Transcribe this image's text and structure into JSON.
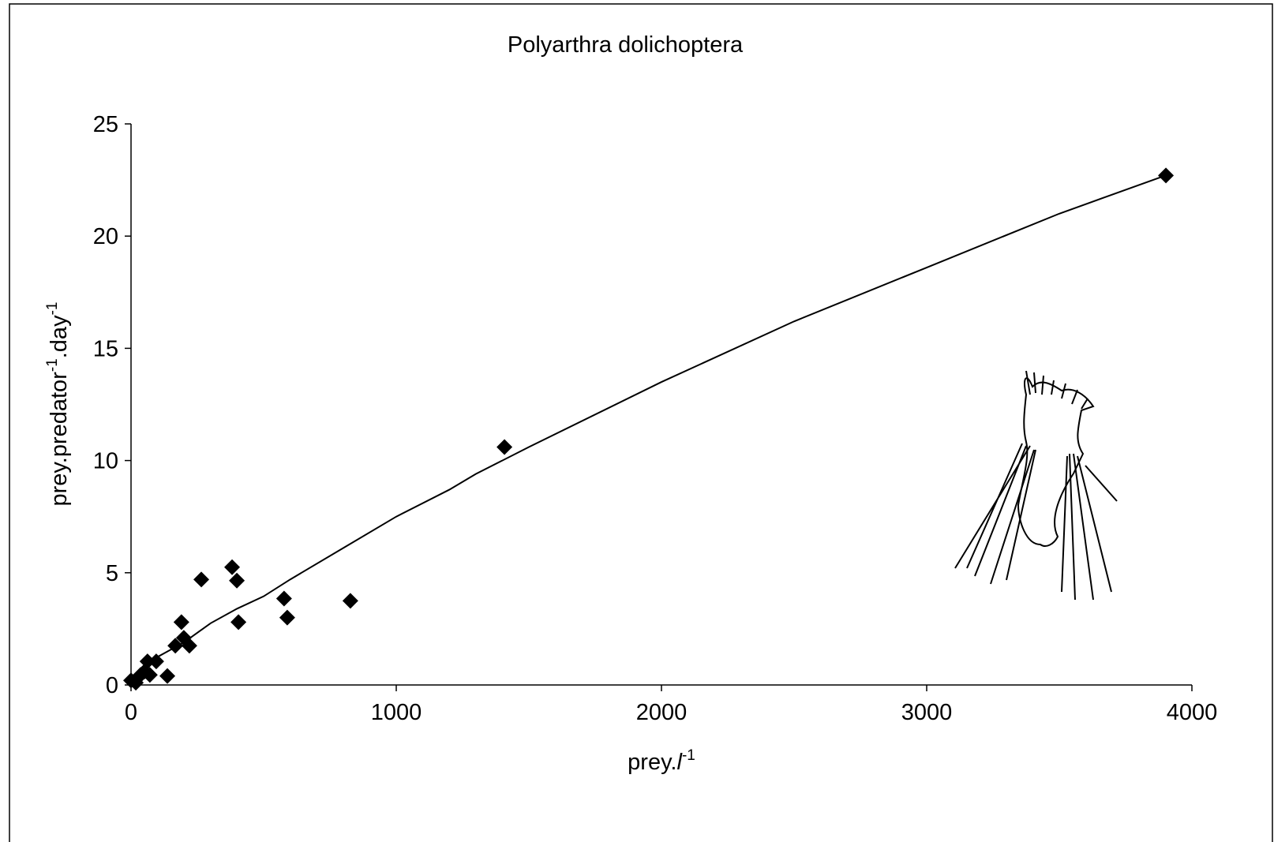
{
  "chart_data": {
    "type": "scatter",
    "title": "Polyarthra dolichoptera",
    "xlabel": [
      "prey.",
      "l",
      "-1"
    ],
    "ylabel": [
      "prey.predator",
      "-1",
      ".day",
      "-1"
    ],
    "xlim": [
      0,
      4000
    ],
    "xticks": [
      0,
      1000,
      2000,
      3000,
      4000
    ],
    "ylim": [
      0,
      25
    ],
    "yticks": [
      0,
      5,
      10,
      15,
      20,
      25
    ],
    "grid": false,
    "series": [
      {
        "type": "scatter",
        "color": "#000000",
        "x": [
          0,
          18,
          36,
          51,
          62,
          71,
          95,
          137,
          167,
          190,
          199,
          220,
          265,
          381,
          399,
          405,
          577,
          589,
          827,
          1408,
          3902
        ],
        "values": [
          0.2,
          0.1,
          0.45,
          0.6,
          1.05,
          0.45,
          1.05,
          0.4,
          1.75,
          2.8,
          2.1,
          1.75,
          4.7,
          5.25,
          4.65,
          2.8,
          3.85,
          3.0,
          3.75,
          10.6,
          22.7
        ]
      },
      {
        "type": "line",
        "color": "#000000",
        "x": [
          0,
          100,
          200,
          300,
          400,
          500,
          600,
          800,
          1000,
          1200,
          1300,
          1500,
          2000,
          2500,
          3000,
          3500,
          3900
        ],
        "values": [
          0,
          1.25,
          1.9,
          2.75,
          3.4,
          3.95,
          4.7,
          6.1,
          7.5,
          8.7,
          9.4,
          10.6,
          13.5,
          16.2,
          18.6,
          21.0,
          22.7
        ]
      }
    ]
  }
}
